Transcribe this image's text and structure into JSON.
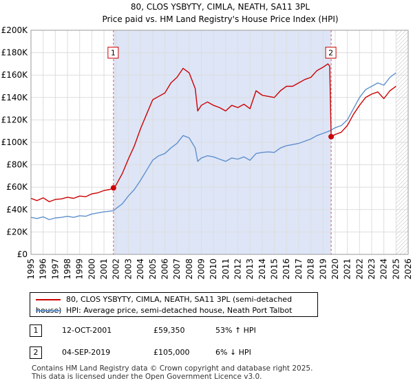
{
  "chart_data": {
    "type": "line",
    "title": "80, CLOS YSBYTY, CIMLA, NEATH, SA11 3PL",
    "subtitle": "Price paid vs. HM Land Registry's House Price Index (HPI)",
    "xlabel": "",
    "ylabel": "",
    "xlim": [
      1995,
      2026
    ],
    "ylim": [
      0,
      200000
    ],
    "y_ticks": [
      {
        "value": 0,
        "label": "£0"
      },
      {
        "value": 20000,
        "label": "£20K"
      },
      {
        "value": 40000,
        "label": "£40K"
      },
      {
        "value": 60000,
        "label": "£60K"
      },
      {
        "value": 80000,
        "label": "£80K"
      },
      {
        "value": 100000,
        "label": "£100K"
      },
      {
        "value": 120000,
        "label": "£120K"
      },
      {
        "value": 140000,
        "label": "£140K"
      },
      {
        "value": 160000,
        "label": "£160K"
      },
      {
        "value": 180000,
        "label": "£180K"
      },
      {
        "value": 200000,
        "label": "£200K"
      }
    ],
    "x_ticks": [
      "1995",
      "1996",
      "1997",
      "1998",
      "1999",
      "2000",
      "2001",
      "2002",
      "2003",
      "2004",
      "2005",
      "2006",
      "2007",
      "2008",
      "2009",
      "2010",
      "2011",
      "2012",
      "2013",
      "2014",
      "2015",
      "2016",
      "2017",
      "2018",
      "2019",
      "2020",
      "2021",
      "2022",
      "2023",
      "2024",
      "2025",
      "2026"
    ],
    "grid": true,
    "shaded_region": {
      "from": 2001.78,
      "to": 2019.67,
      "color": "#dde5f7"
    },
    "hatched_region": {
      "from": 2025.0,
      "to": 2026.0
    },
    "series": [
      {
        "name": "80, CLOS YSBYTY, CIMLA, NEATH, SA11 3PL (semi-detached house)",
        "color": "#cc0000",
        "points": [
          [
            1995.0,
            50000
          ],
          [
            1995.5,
            48000
          ],
          [
            1996.0,
            50500
          ],
          [
            1996.5,
            47000
          ],
          [
            1997.0,
            49000
          ],
          [
            1997.5,
            49500
          ],
          [
            1998.0,
            51000
          ],
          [
            1998.5,
            50000
          ],
          [
            1999.0,
            52000
          ],
          [
            1999.5,
            51500
          ],
          [
            2000.0,
            54000
          ],
          [
            2000.5,
            55000
          ],
          [
            2001.0,
            57000
          ],
          [
            2001.5,
            58000
          ],
          [
            2001.78,
            59350
          ],
          [
            2002.0,
            62000
          ],
          [
            2002.5,
            72000
          ],
          [
            2003.0,
            85000
          ],
          [
            2003.5,
            97000
          ],
          [
            2004.0,
            112000
          ],
          [
            2004.5,
            125000
          ],
          [
            2005.0,
            138000
          ],
          [
            2005.5,
            141000
          ],
          [
            2006.0,
            144000
          ],
          [
            2006.5,
            153000
          ],
          [
            2007.0,
            158000
          ],
          [
            2007.5,
            166000
          ],
          [
            2008.0,
            162000
          ],
          [
            2008.5,
            148000
          ],
          [
            2008.7,
            128000
          ],
          [
            2009.0,
            133000
          ],
          [
            2009.5,
            136000
          ],
          [
            2010.0,
            133000
          ],
          [
            2010.5,
            131000
          ],
          [
            2011.0,
            128000
          ],
          [
            2011.5,
            133000
          ],
          [
            2012.0,
            131000
          ],
          [
            2012.5,
            134000
          ],
          [
            2013.0,
            130000
          ],
          [
            2013.5,
            146000
          ],
          [
            2014.0,
            142000
          ],
          [
            2014.5,
            141000
          ],
          [
            2015.0,
            140000
          ],
          [
            2015.5,
            146000
          ],
          [
            2016.0,
            150000
          ],
          [
            2016.5,
            150000
          ],
          [
            2017.0,
            153000
          ],
          [
            2017.5,
            156000
          ],
          [
            2018.0,
            158000
          ],
          [
            2018.5,
            164000
          ],
          [
            2019.0,
            167000
          ],
          [
            2019.4,
            170000
          ],
          [
            2019.55,
            168000
          ],
          [
            2019.67,
            105000
          ],
          [
            2020.0,
            107000
          ],
          [
            2020.5,
            109000
          ],
          [
            2021.0,
            115000
          ],
          [
            2021.5,
            125000
          ],
          [
            2022.0,
            133000
          ],
          [
            2022.5,
            140000
          ],
          [
            2023.0,
            143000
          ],
          [
            2023.5,
            145000
          ],
          [
            2024.0,
            139000
          ],
          [
            2024.5,
            146000
          ],
          [
            2025.0,
            150000
          ]
        ]
      },
      {
        "name": "HPI: Average price, semi-detached house, Neath Port Talbot",
        "color": "#5f8fcc",
        "points": [
          [
            1995.0,
            33000
          ],
          [
            1995.5,
            32000
          ],
          [
            1996.0,
            33500
          ],
          [
            1996.5,
            31000
          ],
          [
            1997.0,
            32500
          ],
          [
            1997.5,
            33000
          ],
          [
            1998.0,
            34000
          ],
          [
            1998.5,
            33000
          ],
          [
            1999.0,
            34500
          ],
          [
            1999.5,
            34000
          ],
          [
            2000.0,
            36000
          ],
          [
            2000.5,
            37000
          ],
          [
            2001.0,
            38000
          ],
          [
            2001.5,
            38500
          ],
          [
            2001.78,
            39000
          ],
          [
            2002.0,
            41000
          ],
          [
            2002.5,
            45000
          ],
          [
            2003.0,
            52000
          ],
          [
            2003.5,
            58000
          ],
          [
            2004.0,
            66000
          ],
          [
            2004.5,
            75000
          ],
          [
            2005.0,
            84000
          ],
          [
            2005.5,
            88000
          ],
          [
            2006.0,
            90000
          ],
          [
            2006.5,
            95000
          ],
          [
            2007.0,
            99000
          ],
          [
            2007.5,
            106000
          ],
          [
            2008.0,
            104000
          ],
          [
            2008.5,
            95000
          ],
          [
            2008.7,
            83000
          ],
          [
            2009.0,
            86000
          ],
          [
            2009.5,
            88000
          ],
          [
            2010.0,
            87000
          ],
          [
            2010.5,
            85000
          ],
          [
            2011.0,
            83000
          ],
          [
            2011.5,
            86000
          ],
          [
            2012.0,
            85000
          ],
          [
            2012.5,
            87000
          ],
          [
            2013.0,
            84000
          ],
          [
            2013.5,
            90000
          ],
          [
            2014.0,
            91000
          ],
          [
            2014.5,
            91500
          ],
          [
            2015.0,
            91000
          ],
          [
            2015.5,
            95000
          ],
          [
            2016.0,
            97000
          ],
          [
            2016.5,
            98000
          ],
          [
            2017.0,
            99000
          ],
          [
            2017.5,
            101000
          ],
          [
            2018.0,
            103000
          ],
          [
            2018.5,
            106000
          ],
          [
            2019.0,
            108000
          ],
          [
            2019.5,
            110000
          ],
          [
            2019.67,
            111000
          ],
          [
            2020.0,
            113000
          ],
          [
            2020.5,
            115000
          ],
          [
            2021.0,
            120000
          ],
          [
            2021.5,
            130000
          ],
          [
            2022.0,
            140000
          ],
          [
            2022.5,
            147000
          ],
          [
            2023.0,
            150000
          ],
          [
            2023.5,
            153000
          ],
          [
            2024.0,
            151000
          ],
          [
            2024.5,
            158000
          ],
          [
            2025.0,
            162000
          ]
        ]
      }
    ],
    "sale_markers": [
      {
        "label": "1",
        "x": 2001.78,
        "value": 59350
      },
      {
        "label": "2",
        "x": 2019.67,
        "value": 105000
      }
    ],
    "marker_box_value": 180000
  },
  "legend": [
    {
      "label": "80, CLOS YSBYTY, CIMLA, NEATH, SA11 3PL (semi-detached house)",
      "color": "#cc0000"
    },
    {
      "label": "HPI: Average price, semi-detached house, Neath Port Talbot",
      "color": "#5f8fcc"
    }
  ],
  "sales": [
    {
      "num": "1",
      "date": "12-OCT-2001",
      "price": "£59,350",
      "hpi": "53% ↑ HPI"
    },
    {
      "num": "2",
      "date": "04-SEP-2019",
      "price": "£105,000",
      "hpi": "6% ↓ HPI"
    }
  ],
  "footer": {
    "line1": "Contains HM Land Registry data © Crown copyright and database right 2025.",
    "line2": "This data is licensed under the Open Government Licence v3.0."
  }
}
